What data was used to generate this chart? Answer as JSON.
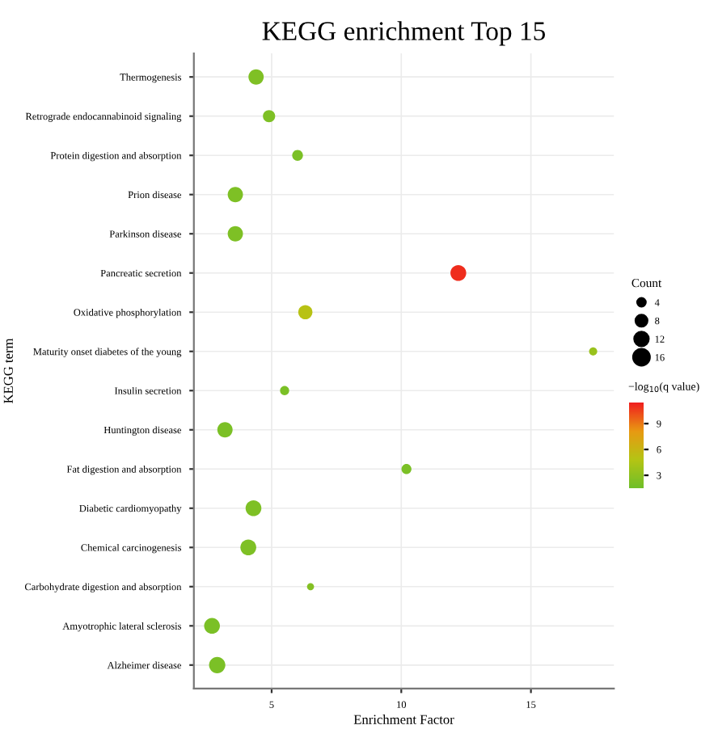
{
  "chart_data": {
    "type": "bubble",
    "orientation": "horizontal",
    "title": "KEGG enrichment Top 15",
    "xlabel": "Enrichment Factor",
    "ylabel": "KEGG term",
    "legend_title": "Count",
    "clabel": "−log$_{10}$(q value)",
    "categories": [
      "Thermogenesis",
      "Retrograde endocannabinoid signaling",
      "Protein digestion and absorption",
      "Prion disease",
      "Parkinson disease",
      "Pancreatic secretion",
      "Oxidative phosphorylation",
      "Maturity onset diabetes of the young",
      "Insulin secretion",
      "Huntington disease",
      "Fat digestion and absorption",
      "Diabetic cardiomyopathy",
      "Chemical carcinogenesis",
      "Carbohydrate digestion and absorption",
      "Amyotrophic lateral sclerosis",
      "Alzheimer disease"
    ],
    "values": [
      4.4,
      4.9,
      6.0,
      3.6,
      3.6,
      12.2,
      6.3,
      17.4,
      5.5,
      3.2,
      10.2,
      4.3,
      4.1,
      6.5,
      2.7,
      2.9
    ],
    "sizes": [
      14,
      9,
      7,
      14,
      14,
      15,
      12,
      4,
      5,
      14,
      6,
      15,
      15,
      3,
      15,
      16
    ],
    "cvalues": [
      2.3,
      2.2,
      2.1,
      2.2,
      2.2,
      11,
      5,
      3.5,
      2.1,
      2.1,
      2.1,
      2.2,
      2.2,
      2.5,
      2.1,
      2.1
    ],
    "size_legend": [
      4,
      8,
      12,
      16
    ],
    "clim": [
      1.5,
      11.4
    ],
    "cticks": [
      3,
      6,
      9
    ],
    "xlim": [
      2.0,
      18.2
    ],
    "xticks": [
      5,
      10,
      15
    ],
    "grid": true,
    "marker": "circle"
  }
}
